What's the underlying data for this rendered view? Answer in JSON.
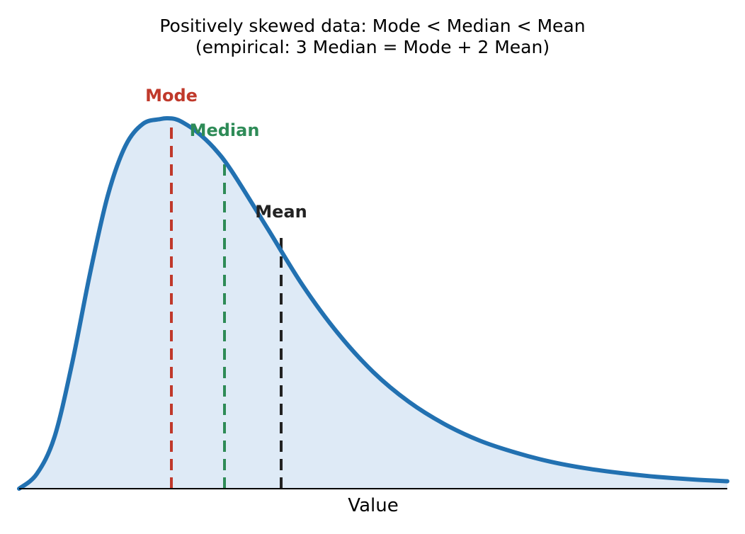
{
  "chart_data": {
    "type": "line",
    "title": "Positively skewed data: Mode < Median < Mean",
    "subtitle": "(empirical:  3 Median = Mode + 2 Mean)",
    "xlabel": "Value",
    "ylabel": "",
    "grid": false,
    "legend": "none",
    "xlim": [
      0,
      10
    ],
    "ylim": [
      0,
      1
    ],
    "series": [
      {
        "x": [
          0,
          0.25,
          0.5,
          0.75,
          1.0,
          1.25,
          1.5,
          1.75,
          2.0,
          2.1,
          2.2,
          2.3,
          2.5,
          2.75,
          3.0,
          3.5,
          4.0,
          4.5,
          5.0,
          5.5,
          6.0,
          6.5,
          7.0,
          7.5,
          8.0,
          8.5,
          9.0,
          9.5,
          10.0
        ],
        "values": [
          0.0,
          0.04,
          0.14,
          0.34,
          0.58,
          0.79,
          0.925,
          0.985,
          0.998,
          1.0,
          0.998,
          0.99,
          0.965,
          0.92,
          0.858,
          0.705,
          0.55,
          0.42,
          0.315,
          0.235,
          0.175,
          0.13,
          0.098,
          0.073,
          0.055,
          0.042,
          0.032,
          0.025,
          0.02
        ]
      }
    ],
    "markers": [
      {
        "label": "Mode",
        "x": 2.15,
        "height": 1.0,
        "color": "#c0392b"
      },
      {
        "label": "Median",
        "x": 2.9,
        "height": 0.885,
        "color": "#2e8b57"
      },
      {
        "label": "Mean",
        "x": 3.7,
        "height": 0.68,
        "color": "#222222"
      }
    ],
    "colors": {
      "line": "#2271b1",
      "fill": "#deeaf6",
      "axis": "#000000"
    }
  }
}
